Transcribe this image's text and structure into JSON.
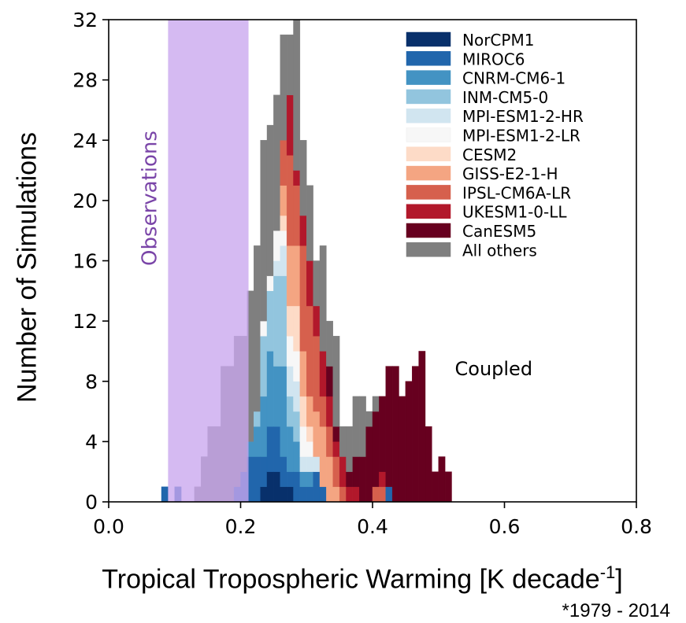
{
  "chart_data": {
    "type": "bar",
    "stacked": true,
    "xlabel_main": "Tropical Tropospheric Warming [K decade",
    "xlabel_sup": "-1",
    "xlabel_end": "]",
    "ylabel": "Number of Simulations",
    "footnote": "*1979 - 2014",
    "xlim": [
      0.0,
      0.8
    ],
    "ylim": [
      0,
      32
    ],
    "xticks": [
      "0.0",
      "0.2",
      "0.4",
      "0.6",
      "0.8"
    ],
    "yticks": [
      "0",
      "4",
      "8",
      "12",
      "16",
      "20",
      "24",
      "28",
      "32"
    ],
    "grid": false,
    "legend_position": "top-right",
    "bin_start": 0.08,
    "bin_width": 0.01,
    "observations": {
      "label": "Observations",
      "range": [
        0.09,
        0.212
      ],
      "color": "#c9a6ee"
    },
    "coupled": {
      "label": "Coupled",
      "x": 0.52,
      "y": 8.5
    },
    "series": [
      {
        "name": "NorCPM1",
        "color": "#08306b",
        "values": [
          0,
          0,
          0,
          0,
          0,
          0,
          0,
          0,
          0,
          0,
          0,
          0,
          0,
          0,
          0,
          1,
          2,
          2,
          1,
          1,
          0,
          0,
          0,
          0,
          0,
          0,
          0,
          0,
          0,
          0,
          0,
          0,
          0,
          0,
          0,
          0,
          0,
          0,
          0,
          0,
          0,
          0,
          0,
          0,
          0,
          0,
          0,
          0,
          0,
          0
        ]
      },
      {
        "name": "MIROC6",
        "color": "#2166ac",
        "values": [
          1,
          0,
          1,
          0,
          0,
          0,
          0,
          0,
          0,
          0,
          0,
          1,
          2,
          3,
          3,
          2,
          3,
          3,
          2,
          1,
          2,
          1,
          1,
          2,
          1,
          0,
          0,
          0,
          0,
          0,
          0,
          0,
          0,
          0,
          1,
          0,
          0,
          0,
          0,
          0,
          0,
          0,
          0,
          0,
          0,
          0,
          0,
          0,
          0,
          0
        ]
      },
      {
        "name": "CNRM-CM6-1",
        "color": "#4393c3",
        "values": [
          0,
          0,
          0,
          0,
          0,
          0,
          0,
          0,
          0,
          0,
          0,
          0,
          0,
          1,
          2,
          4,
          5,
          4,
          6,
          3,
          2,
          1,
          1,
          0,
          0,
          0,
          0,
          0,
          0,
          0,
          0,
          0,
          0,
          0,
          0,
          0,
          0,
          0,
          0,
          0,
          0,
          0,
          0,
          0,
          0,
          0,
          0,
          0,
          0,
          0
        ]
      },
      {
        "name": "INM-CM5-0",
        "color": "#92c5de",
        "values": [
          0,
          0,
          0,
          0,
          0,
          0,
          0,
          0,
          0,
          0,
          0,
          0,
          0,
          0,
          1,
          4,
          4,
          6,
          6,
          2,
          2,
          0,
          0,
          0,
          0,
          0,
          0,
          0,
          0,
          0,
          0,
          0,
          0,
          0,
          0,
          0,
          0,
          0,
          0,
          0,
          0,
          0,
          0,
          0,
          0,
          0,
          0,
          0,
          0,
          0
        ]
      },
      {
        "name": "MPI-ESM1-2-HR",
        "color": "#d1e5f0",
        "values": [
          0,
          0,
          0,
          0,
          0,
          0,
          0,
          0,
          0,
          0,
          0,
          0,
          0,
          0,
          0,
          0,
          0,
          1,
          2,
          2,
          2,
          1,
          1,
          1,
          0,
          0,
          0,
          0,
          0,
          0,
          0,
          0,
          0,
          0,
          0,
          0,
          0,
          0,
          0,
          0,
          0,
          0,
          0,
          0,
          0,
          0,
          0,
          0,
          0,
          0
        ]
      },
      {
        "name": "MPI-ESM1-2-LR",
        "color": "#f7f7f7",
        "values": [
          0,
          0,
          0,
          0,
          0,
          0,
          0,
          0,
          0,
          0,
          0,
          0,
          0,
          0,
          0,
          1,
          1,
          2,
          1,
          2,
          2,
          2,
          1,
          0,
          0,
          0,
          0,
          0,
          0,
          0,
          0,
          0,
          0,
          0,
          0,
          0,
          0,
          0,
          0,
          0,
          0,
          0,
          0,
          0,
          0,
          0,
          0,
          0,
          0,
          0
        ]
      },
      {
        "name": "CESM2",
        "color": "#fddbc7",
        "values": [
          0,
          0,
          0,
          0,
          0,
          0,
          0,
          0,
          0,
          0,
          0,
          0,
          0,
          0,
          0,
          0,
          0,
          0,
          1,
          2,
          3,
          2,
          1,
          0,
          0,
          0,
          0,
          0,
          0,
          0,
          0,
          0,
          0,
          0,
          0,
          0,
          0,
          0,
          0,
          0,
          0,
          0,
          0,
          0,
          0,
          0,
          0,
          0,
          0,
          0
        ]
      },
      {
        "name": "GISS-E2-1-H",
        "color": "#f4a582",
        "values": [
          0,
          0,
          0,
          0,
          0,
          0,
          0,
          0,
          0,
          0,
          0,
          0,
          0,
          0,
          0,
          0,
          0,
          0,
          2,
          4,
          4,
          3,
          2,
          3,
          4,
          3,
          1,
          0,
          0,
          0,
          0,
          0,
          0,
          0,
          0,
          0,
          0,
          0,
          0,
          0,
          0,
          0,
          0,
          0,
          0,
          0,
          0,
          0,
          0,
          0
        ]
      },
      {
        "name": "IPSL-CM6A-LR",
        "color": "#d6604d",
        "values": [
          0,
          0,
          0,
          0,
          0,
          0,
          0,
          0,
          0,
          0,
          0,
          0,
          0,
          0,
          0,
          0,
          0,
          0,
          3,
          6,
          4,
          7,
          6,
          5,
          2,
          2,
          2,
          1,
          0,
          0,
          0,
          0,
          1,
          1,
          0,
          0,
          0,
          0,
          0,
          0,
          0,
          0,
          0,
          0,
          0,
          0,
          0,
          0,
          0,
          0
        ]
      },
      {
        "name": "UKESM1-0-LL",
        "color": "#b2182b",
        "values": [
          0,
          0,
          0,
          0,
          0,
          0,
          0,
          0,
          0,
          0,
          0,
          0,
          0,
          0,
          0,
          0,
          0,
          0,
          0,
          4,
          1,
          2,
          3,
          2,
          3,
          2,
          1,
          2,
          1,
          1,
          0,
          0,
          0,
          1,
          0,
          0,
          0,
          0,
          0,
          0,
          0,
          0,
          0,
          0,
          0,
          0,
          0,
          0,
          0,
          0
        ]
      },
      {
        "name": "CanESM5",
        "color": "#67001f",
        "values": [
          0,
          0,
          0,
          0,
          0,
          0,
          0,
          0,
          0,
          0,
          0,
          0,
          0,
          0,
          0,
          0,
          0,
          0,
          0,
          0,
          0,
          0,
          0,
          0,
          0,
          2,
          1,
          0,
          1,
          2,
          3,
          5,
          5,
          5,
          8,
          9,
          7,
          8,
          9,
          10,
          5,
          2,
          3,
          2,
          0,
          0,
          0,
          0,
          0,
          0
        ]
      },
      {
        "name": "All others",
        "color": "#7f7f7f",
        "values": [
          0,
          0,
          0,
          0,
          0,
          1,
          3,
          5,
          5,
          9,
          9,
          10,
          9,
          10,
          11,
          12,
          10,
          9,
          7,
          4,
          10,
          5,
          5,
          3,
          7,
          3,
          6,
          2,
          3,
          4,
          4,
          1,
          1,
          0,
          0,
          0,
          0,
          0,
          0,
          0,
          0,
          0,
          0,
          0,
          0,
          0,
          0,
          0,
          0,
          0
        ]
      }
    ]
  }
}
